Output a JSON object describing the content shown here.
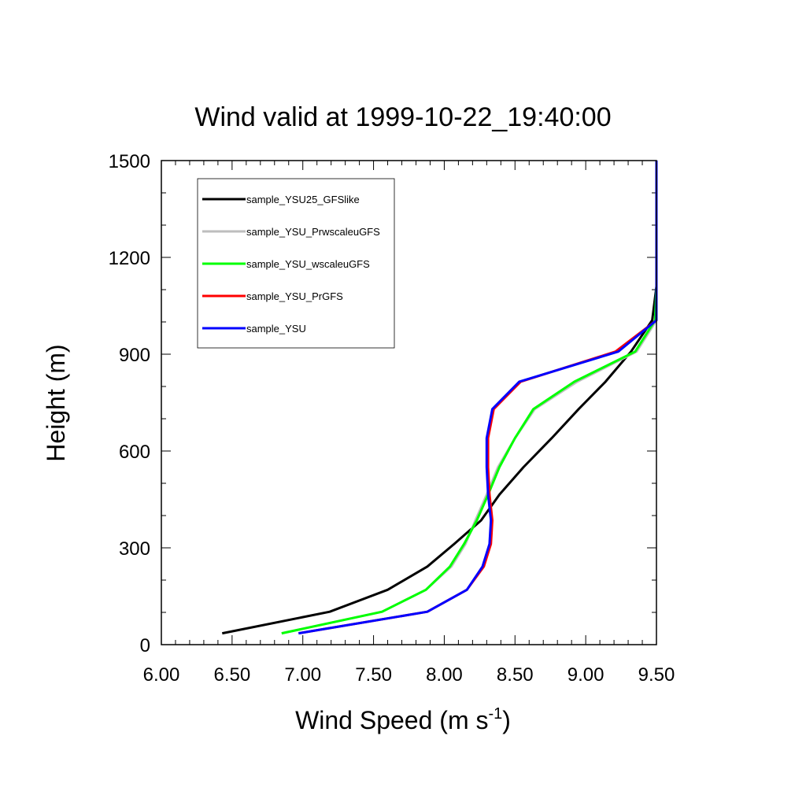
{
  "chart_data": {
    "type": "line",
    "title": "Wind valid at 1999-10-22_19:40:00",
    "xlabel": "Wind Speed (m s",
    "xlabel_sup": "-1",
    "xlabel_end": ")",
    "ylabel": "Height (m)",
    "xlim": [
      6.0,
      9.5
    ],
    "ylim": [
      0,
      1500
    ],
    "x_ticks": [
      "6.00",
      "6.50",
      "7.00",
      "7.50",
      "8.00",
      "8.50",
      "9.00",
      "9.50"
    ],
    "y_ticks": [
      "0",
      "300",
      "600",
      "900",
      "1200",
      "1500"
    ],
    "legend_position": "top-left",
    "grid": false,
    "series": [
      {
        "name": "sample_YSU25_GFSlike",
        "color": "#000000",
        "points": [
          [
            6.43,
            35
          ],
          [
            7.19,
            102
          ],
          [
            7.6,
            170
          ],
          [
            7.88,
            242
          ],
          [
            8.07,
            312
          ],
          [
            8.26,
            385
          ],
          [
            8.39,
            465
          ],
          [
            8.56,
            550
          ],
          [
            8.76,
            640
          ],
          [
            8.95,
            730
          ],
          [
            9.14,
            815
          ],
          [
            9.32,
            908
          ],
          [
            9.47,
            1005
          ],
          [
            9.5,
            1110
          ],
          [
            9.5,
            1225
          ],
          [
            9.5,
            1350
          ],
          [
            9.5,
            1500
          ]
        ]
      },
      {
        "name": "sample_YSU_PrwscaleuGFS",
        "color": "#bebebe",
        "points": [
          [
            6.85,
            35
          ],
          [
            7.56,
            102
          ],
          [
            7.87,
            170
          ],
          [
            8.05,
            242
          ],
          [
            8.15,
            312
          ],
          [
            8.22,
            385
          ],
          [
            8.3,
            465
          ],
          [
            8.38,
            550
          ],
          [
            8.5,
            640
          ],
          [
            8.64,
            730
          ],
          [
            8.94,
            815
          ],
          [
            9.36,
            908
          ],
          [
            9.5,
            1005
          ],
          [
            9.5,
            1110
          ],
          [
            9.5,
            1225
          ],
          [
            9.5,
            1350
          ],
          [
            9.5,
            1500
          ]
        ]
      },
      {
        "name": "sample_YSU_wscaleuGFS",
        "color": "#00ff00",
        "points": [
          [
            6.85,
            35
          ],
          [
            7.56,
            102
          ],
          [
            7.87,
            170
          ],
          [
            8.04,
            242
          ],
          [
            8.14,
            312
          ],
          [
            8.23,
            385
          ],
          [
            8.31,
            465
          ],
          [
            8.39,
            550
          ],
          [
            8.5,
            640
          ],
          [
            8.63,
            730
          ],
          [
            8.92,
            815
          ],
          [
            9.35,
            908
          ],
          [
            9.49,
            1005
          ],
          [
            9.5,
            1110
          ],
          [
            9.5,
            1225
          ],
          [
            9.5,
            1350
          ],
          [
            9.5,
            1500
          ]
        ]
      },
      {
        "name": "sample_YSU_PrGFS",
        "color": "#ff0000",
        "points": [
          [
            6.97,
            35
          ],
          [
            7.88,
            102
          ],
          [
            8.16,
            170
          ],
          [
            8.28,
            242
          ],
          [
            8.33,
            312
          ],
          [
            8.34,
            385
          ],
          [
            8.32,
            465
          ],
          [
            8.31,
            550
          ],
          [
            8.31,
            640
          ],
          [
            8.35,
            730
          ],
          [
            8.54,
            815
          ],
          [
            9.21,
            908
          ],
          [
            9.5,
            1005
          ],
          [
            9.5,
            1110
          ],
          [
            9.5,
            1225
          ],
          [
            9.5,
            1350
          ],
          [
            9.5,
            1500
          ]
        ]
      },
      {
        "name": "sample_YSU",
        "color": "#0000ff",
        "points": [
          [
            6.97,
            35
          ],
          [
            7.88,
            102
          ],
          [
            8.16,
            170
          ],
          [
            8.27,
            242
          ],
          [
            8.32,
            312
          ],
          [
            8.33,
            385
          ],
          [
            8.31,
            465
          ],
          [
            8.3,
            550
          ],
          [
            8.3,
            640
          ],
          [
            8.34,
            730
          ],
          [
            8.53,
            815
          ],
          [
            9.23,
            908
          ],
          [
            9.5,
            1005
          ],
          [
            9.5,
            1110
          ],
          [
            9.5,
            1225
          ],
          [
            9.5,
            1350
          ],
          [
            9.5,
            1500
          ]
        ]
      }
    ]
  }
}
